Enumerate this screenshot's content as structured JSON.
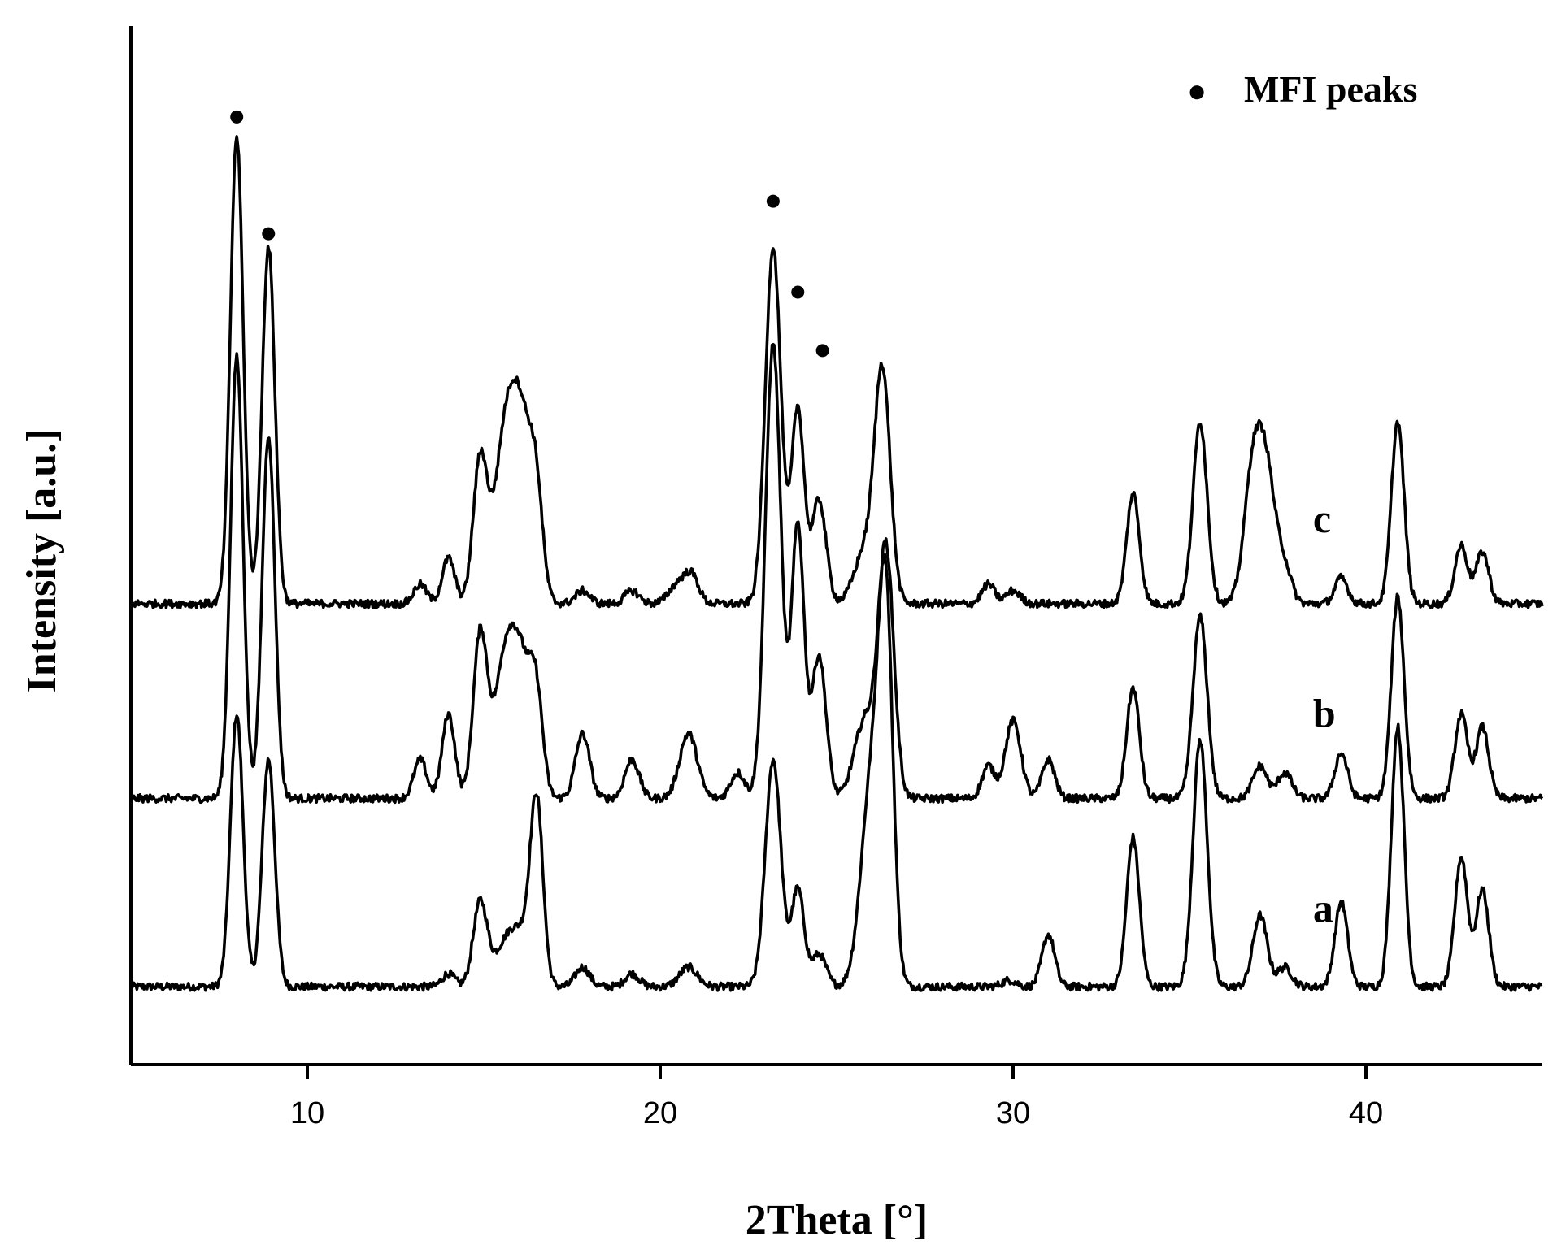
{
  "chart_data": {
    "type": "line",
    "title": "",
    "xlabel": "2Theta [°]",
    "ylabel": "Intensity [a.u.]",
    "xlim": [
      5,
      45
    ],
    "xticks": [
      10,
      20,
      30,
      40
    ],
    "y_ticks_shown": false,
    "grid": false,
    "legend": {
      "marker": "●",
      "label": "MFI peaks",
      "position": "top-right"
    },
    "series": [
      {
        "name": "a",
        "baseline": 0.12,
        "peaks": [
          [
            8.0,
            0.42,
            0.18
          ],
          [
            8.9,
            0.35,
            0.18
          ],
          [
            14.0,
            0.02,
            0.18
          ],
          [
            14.9,
            0.13,
            0.2
          ],
          [
            15.6,
            0.06,
            0.3
          ],
          [
            16.1,
            0.07,
            0.3
          ],
          [
            16.5,
            0.27,
            0.18
          ],
          [
            17.8,
            0.03,
            0.2
          ],
          [
            19.2,
            0.02,
            0.2
          ],
          [
            20.8,
            0.03,
            0.25
          ],
          [
            23.2,
            0.35,
            0.22
          ],
          [
            23.9,
            0.15,
            0.18
          ],
          [
            24.5,
            0.05,
            0.2
          ],
          [
            26.0,
            0.32,
            0.3
          ],
          [
            26.4,
            0.52,
            0.2
          ],
          [
            29.9,
            0.01,
            0.2
          ],
          [
            31.0,
            0.08,
            0.18
          ],
          [
            33.4,
            0.23,
            0.18
          ],
          [
            35.3,
            0.38,
            0.2
          ],
          [
            37.0,
            0.11,
            0.2
          ],
          [
            37.7,
            0.03,
            0.2
          ],
          [
            39.3,
            0.13,
            0.18
          ],
          [
            40.9,
            0.4,
            0.18
          ],
          [
            42.7,
            0.2,
            0.18
          ],
          [
            43.3,
            0.15,
            0.18
          ]
        ]
      },
      {
        "name": "b",
        "baseline": 0.41,
        "peaks": [
          [
            8.0,
            0.68,
            0.18
          ],
          [
            8.9,
            0.56,
            0.18
          ],
          [
            13.2,
            0.06,
            0.18
          ],
          [
            14.0,
            0.13,
            0.18
          ],
          [
            14.9,
            0.25,
            0.2
          ],
          [
            15.6,
            0.2,
            0.3
          ],
          [
            16.1,
            0.18,
            0.3
          ],
          [
            16.5,
            0.12,
            0.18
          ],
          [
            17.8,
            0.1,
            0.2
          ],
          [
            19.2,
            0.06,
            0.2
          ],
          [
            20.8,
            0.1,
            0.25
          ],
          [
            22.2,
            0.04,
            0.2
          ],
          [
            23.2,
            0.7,
            0.22
          ],
          [
            23.9,
            0.42,
            0.18
          ],
          [
            24.5,
            0.22,
            0.2
          ],
          [
            25.8,
            0.12,
            0.3
          ],
          [
            26.4,
            0.38,
            0.22
          ],
          [
            29.3,
            0.05,
            0.18
          ],
          [
            30.0,
            0.12,
            0.22
          ],
          [
            31.0,
            0.06,
            0.18
          ],
          [
            33.4,
            0.17,
            0.18
          ],
          [
            35.3,
            0.28,
            0.2
          ],
          [
            37.0,
            0.05,
            0.2
          ],
          [
            37.7,
            0.04,
            0.2
          ],
          [
            39.3,
            0.07,
            0.18
          ],
          [
            40.9,
            0.31,
            0.18
          ],
          [
            42.7,
            0.13,
            0.18
          ],
          [
            43.3,
            0.11,
            0.18
          ]
        ]
      },
      {
        "name": "c",
        "baseline": 0.71,
        "peaks": [
          [
            8.0,
            0.72,
            0.18
          ],
          [
            8.9,
            0.55,
            0.18
          ],
          [
            13.2,
            0.03,
            0.18
          ],
          [
            14.0,
            0.07,
            0.18
          ],
          [
            14.9,
            0.22,
            0.2
          ],
          [
            15.6,
            0.24,
            0.3
          ],
          [
            16.1,
            0.25,
            0.3
          ],
          [
            16.5,
            0.12,
            0.18
          ],
          [
            17.8,
            0.02,
            0.2
          ],
          [
            19.2,
            0.02,
            0.2
          ],
          [
            20.5,
            0.03,
            0.25
          ],
          [
            20.9,
            0.04,
            0.2
          ],
          [
            23.2,
            0.55,
            0.22
          ],
          [
            23.9,
            0.3,
            0.18
          ],
          [
            24.5,
            0.16,
            0.2
          ],
          [
            25.8,
            0.08,
            0.3
          ],
          [
            26.3,
            0.35,
            0.22
          ],
          [
            29.3,
            0.03,
            0.18
          ],
          [
            30.0,
            0.02,
            0.2
          ],
          [
            33.4,
            0.17,
            0.18
          ],
          [
            35.3,
            0.28,
            0.2
          ],
          [
            36.8,
            0.2,
            0.25
          ],
          [
            37.2,
            0.18,
            0.25
          ],
          [
            37.7,
            0.05,
            0.2
          ],
          [
            39.3,
            0.04,
            0.18
          ],
          [
            40.9,
            0.28,
            0.18
          ],
          [
            42.7,
            0.09,
            0.18
          ],
          [
            43.3,
            0.08,
            0.18
          ]
        ]
      }
    ],
    "mfi_markers": [
      {
        "series": "c",
        "x": 8.0,
        "y": 1.46
      },
      {
        "series": "c",
        "x": 8.9,
        "y": 1.28
      },
      {
        "series": "c",
        "x": 23.2,
        "y": 1.33
      },
      {
        "series": "c",
        "x": 23.9,
        "y": 1.19
      },
      {
        "series": "c",
        "x": 24.6,
        "y": 1.1
      }
    ],
    "curve_labels": [
      {
        "text": "c",
        "x": 38.5,
        "y": 0.82
      },
      {
        "text": "b",
        "x": 38.5,
        "y": 0.52
      },
      {
        "text": "a",
        "x": 38.5,
        "y": 0.22
      }
    ],
    "ylim": [
      0,
      1.6
    ]
  }
}
